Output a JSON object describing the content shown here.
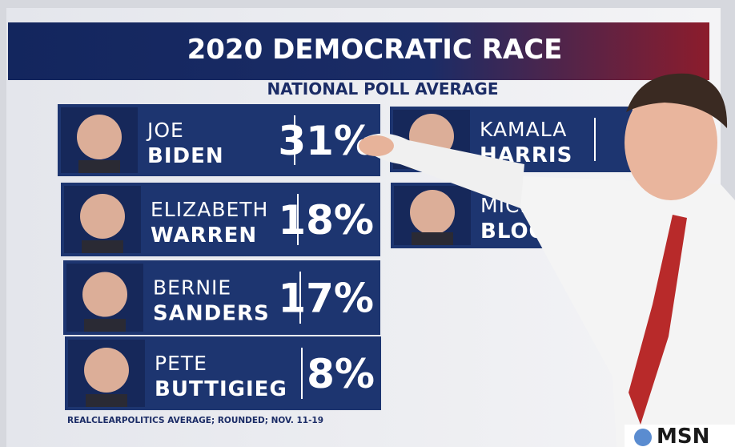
{
  "header": {
    "title": "2020 DEMOCRATIC RACE",
    "subtitle": "NATIONAL POLL AVERAGE"
  },
  "candidates": [
    {
      "first": "JOE",
      "last": "BIDEN",
      "percent": "31%"
    },
    {
      "first": "ELIZABETH",
      "last": "WARREN",
      "percent": "18%"
    },
    {
      "first": "BERNIE",
      "last": "SANDERS",
      "percent": "17%"
    },
    {
      "first": "PETE",
      "last": "BUTTIGIEG",
      "percent": "8%"
    },
    {
      "first": "KAMALA",
      "last": "HARRIS"
    },
    {
      "first": "MICHAEL",
      "last": "BLOOMBERG"
    }
  ],
  "source": "REALCLEARPOLITICS AVERAGE; ROUNDED; NOV. 11-19",
  "logo": "MSN"
}
